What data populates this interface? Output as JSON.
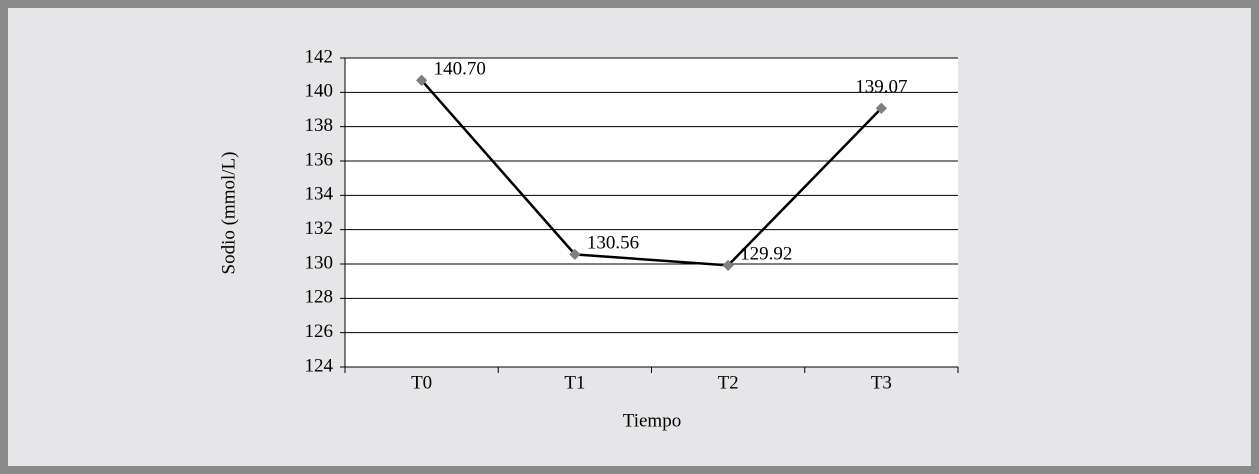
{
  "chart_data": {
    "type": "line",
    "categories": [
      "T0",
      "T1",
      "T2",
      "T3"
    ],
    "series": [
      {
        "name": "Sodio",
        "color": "#000000",
        "marker_color": "#7f7f7f",
        "values": [
          140.7,
          130.56,
          129.92,
          139.07
        ],
        "value_labels": [
          "140.70",
          "130.56",
          "129.92",
          "139.07"
        ]
      }
    ],
    "xlabel": "Tiempo",
    "ylabel": "Sodio (mmol/L)",
    "ylim": [
      124,
      142
    ],
    "yticks": [
      124,
      126,
      128,
      130,
      132,
      134,
      136,
      138,
      140,
      142
    ],
    "grid": true
  }
}
